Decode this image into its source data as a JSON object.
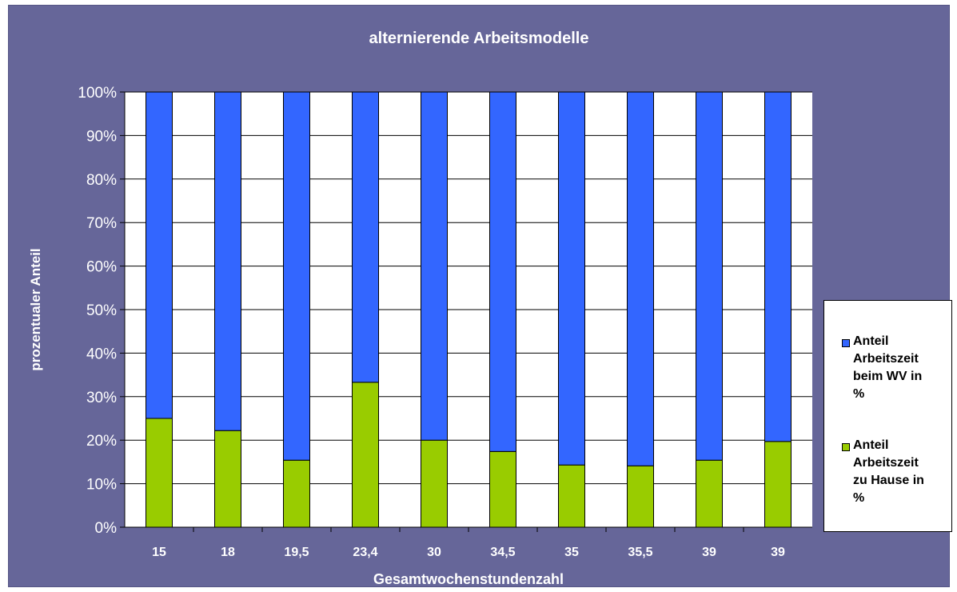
{
  "chart_data": {
    "type": "bar",
    "stacked": true,
    "percent": true,
    "title": "alternierende Arbeitsmodelle",
    "xlabel": "Gesamtwochenstundenzahl",
    "ylabel": "prozentualer Anteil",
    "categories": [
      "15",
      "18",
      "19,5",
      "23,4",
      "30",
      "34,5",
      "35",
      "35,5",
      "39",
      "39"
    ],
    "yticks": [
      "0%",
      "10%",
      "20%",
      "30%",
      "40%",
      "50%",
      "60%",
      "70%",
      "80%",
      "90%",
      "100%"
    ],
    "ylim": [
      0,
      100
    ],
    "grid": true,
    "legend_position": "right",
    "series": [
      {
        "name": "Anteil Arbeitszeit zu Hause in %",
        "legend_lines": [
          "Anteil",
          "Arbeitszeit",
          "zu Hause in",
          "%"
        ],
        "color": "#99cc00",
        "values": [
          25.0,
          22.2,
          15.4,
          33.3,
          20.0,
          17.4,
          14.3,
          14.1,
          15.4,
          19.7
        ]
      },
      {
        "name": "Anteil Arbeitszeit beim WV in %",
        "legend_lines": [
          "Anteil",
          "Arbeitszeit",
          "beim WV in",
          "%"
        ],
        "color": "#3366ff",
        "values": [
          75.0,
          77.8,
          84.6,
          66.7,
          80.0,
          82.6,
          85.7,
          85.9,
          84.6,
          80.3
        ]
      }
    ],
    "colors": {
      "background": "#666699",
      "plot_area": "#ffffff",
      "text": "#ffffff"
    }
  }
}
